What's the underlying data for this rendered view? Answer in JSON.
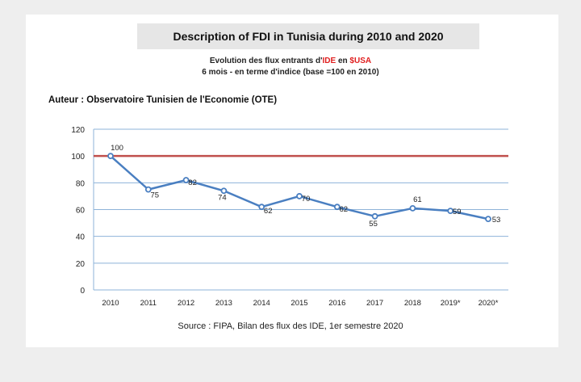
{
  "title": "Description of FDI in Tunisia during 2010 and 2020",
  "subtitle": {
    "line1_prefix": "Evolution des flux entrants d'",
    "line1_red1": "IDE",
    "line1_mid": " en ",
    "line1_red2": "$USA",
    "line2": "6 mois - en terme d'indice (base =100 en 2010)"
  },
  "author": "Auteur : Observatoire Tunisien de l'Economie (OTE)",
  "source": "Source : FIPA, Bilan des flux des IDE, 1er semestre 2020",
  "colors": {
    "line": "#4a7fc1",
    "baseline": "#c0504d",
    "grid": "#8eb3d9"
  },
  "chart_data": {
    "type": "line",
    "categories": [
      "2010",
      "2011",
      "2012",
      "2013",
      "2014",
      "2015",
      "2016",
      "2017",
      "2018",
      "2019*",
      "2020*"
    ],
    "series": [
      {
        "values": [
          100,
          75,
          82,
          74,
          62,
          70,
          62,
          55,
          61,
          59,
          53
        ]
      }
    ],
    "data_labels": [
      "100",
      "75",
      "82",
      "74",
      "62",
      "70",
      "62",
      "55",
      "61",
      "59",
      "53"
    ],
    "reference_line": 100,
    "ylim": [
      0,
      120
    ],
    "yticks": [
      0,
      20,
      40,
      60,
      80,
      100,
      120
    ],
    "grid": true,
    "legend": "none"
  }
}
